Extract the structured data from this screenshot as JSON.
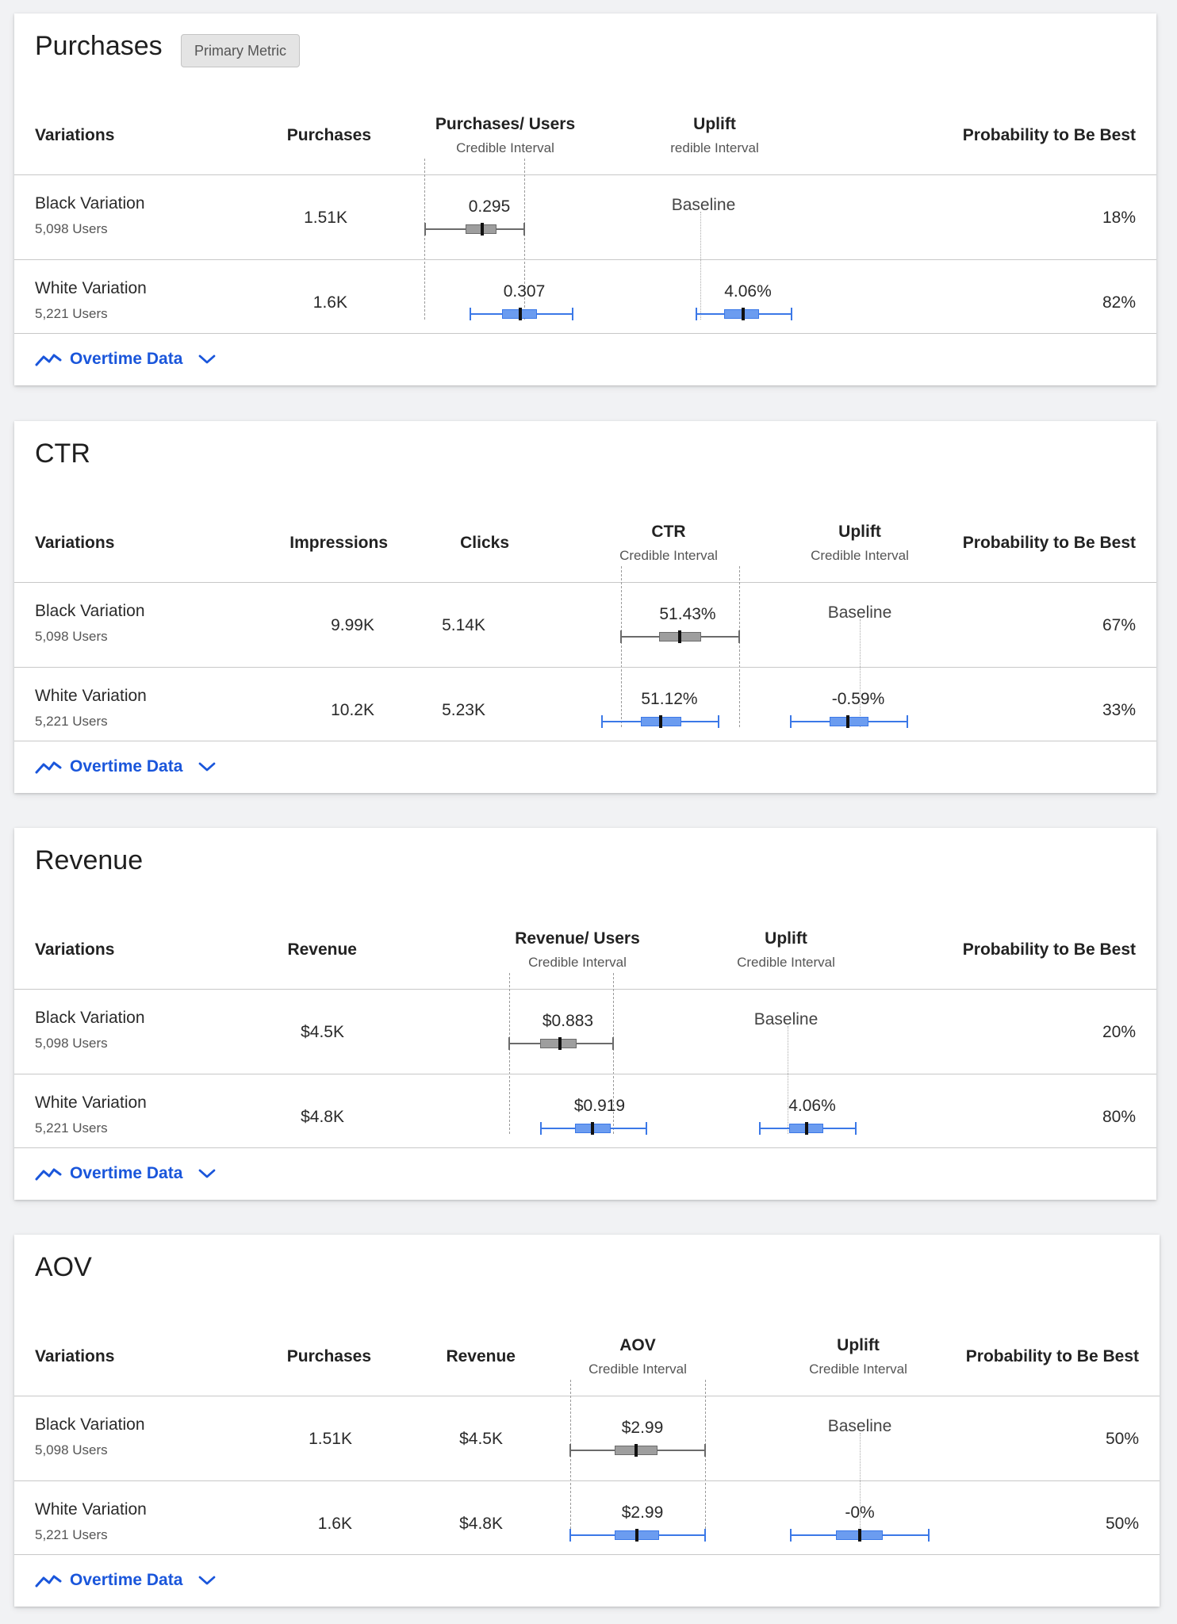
{
  "colors": {
    "accent": "#1a56db",
    "control_bar": "#6b6b6b",
    "control_box": "#9e9e9e",
    "variant_bar": "#3b78e7",
    "variant_box": "#6b9cf0"
  },
  "icons": {
    "overtime": "trend-line-icon",
    "expand": "chevron-down-icon"
  },
  "cards": [
    {
      "title": "Purchases",
      "badge": "Primary Metric",
      "headers": [
        "Variations",
        "Purchases",
        "Purchases/ Users",
        "Uplift",
        "Probability to Be Best"
      ],
      "header_subs": [
        "",
        "",
        "Credible Interval",
        "redible Interval",
        ""
      ],
      "rows": [
        {
          "name": "Black Variation",
          "users": "5,098 Users",
          "cells": [
            "1.51K"
          ],
          "ci_value": "0.295",
          "uplift": "Baseline",
          "probability": "18%"
        },
        {
          "name": "White Variation",
          "users": "5,221 Users",
          "cells": [
            "1.6K"
          ],
          "ci_value": "0.307",
          "uplift": "4.06%",
          "probability": "82%"
        }
      ],
      "footer": "Overtime Data"
    },
    {
      "title": "CTR",
      "headers": [
        "Variations",
        "Impressions",
        "Clicks",
        "CTR",
        "Uplift",
        "Probability to Be Best"
      ],
      "header_subs": [
        "",
        "",
        "",
        "Credible Interval",
        "Credible Interval",
        ""
      ],
      "rows": [
        {
          "name": "Black Variation",
          "users": "5,098 Users",
          "cells": [
            "9.99K",
            "5.14K"
          ],
          "ci_value": "51.43%",
          "uplift": "Baseline",
          "probability": "67%"
        },
        {
          "name": "White Variation",
          "users": "5,221 Users",
          "cells": [
            "10.2K",
            "5.23K"
          ],
          "ci_value": "51.12%",
          "uplift": "-0.59%",
          "probability": "33%"
        }
      ],
      "footer": "Overtime Data"
    },
    {
      "title": "Revenue",
      "headers": [
        "Variations",
        "Revenue",
        "Revenue/ Users",
        "Uplift",
        "Probability to Be Best"
      ],
      "header_subs": [
        "",
        "",
        "Credible Interval",
        "Credible Interval",
        ""
      ],
      "rows": [
        {
          "name": "Black Variation",
          "users": "5,098 Users",
          "cells": [
            "$4.5K"
          ],
          "ci_value": "$0.883",
          "uplift": "Baseline",
          "probability": "20%"
        },
        {
          "name": "White Variation",
          "users": "5,221 Users",
          "cells": [
            "$4.8K"
          ],
          "ci_value": "$0.919",
          "uplift": "4.06%",
          "probability": "80%"
        }
      ],
      "footer": "Overtime Data"
    },
    {
      "title": "AOV",
      "headers": [
        "Variations",
        "Purchases",
        "Revenue",
        "AOV",
        "Uplift",
        "Probability to Be Best"
      ],
      "header_subs": [
        "",
        "",
        "",
        "Credible Interval",
        "Credible Interval",
        ""
      ],
      "rows": [
        {
          "name": "Black Variation",
          "users": "5,098 Users",
          "cells": [
            "1.51K",
            "$4.5K"
          ],
          "ci_value": "$2.99",
          "uplift": "Baseline",
          "probability": "50%"
        },
        {
          "name": "White Variation",
          "users": "5,221 Users",
          "cells": [
            "1.6K",
            "$4.8K"
          ],
          "ci_value": "$2.99",
          "uplift": "-0%",
          "probability": "50%"
        }
      ],
      "footer": "Overtime Data"
    }
  ]
}
